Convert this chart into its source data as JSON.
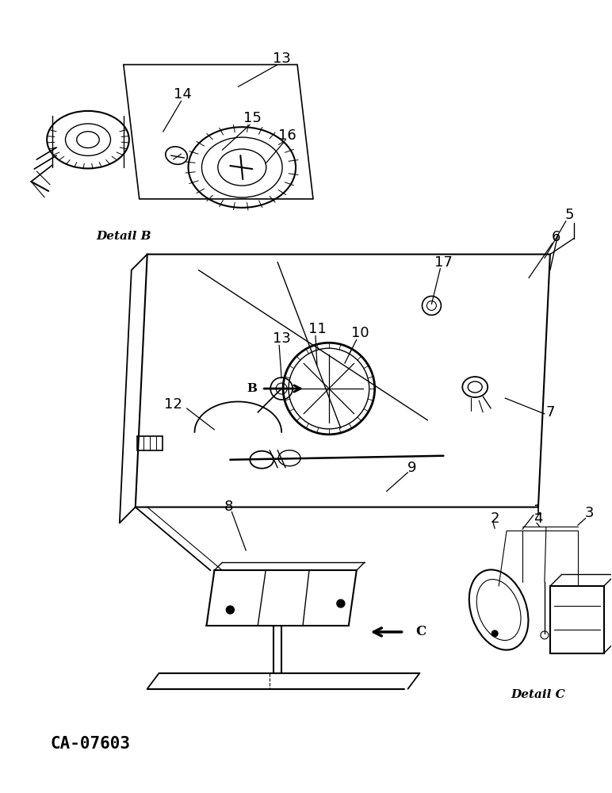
{
  "bg_color": "#ffffff",
  "line_color": "#000000",
  "title_bottom_left": "CA-07603",
  "detail_b_label": "Detail B",
  "detail_c_label": "Detail C",
  "figsize": [
    7.72,
    10.0
  ],
  "dpi": 100
}
